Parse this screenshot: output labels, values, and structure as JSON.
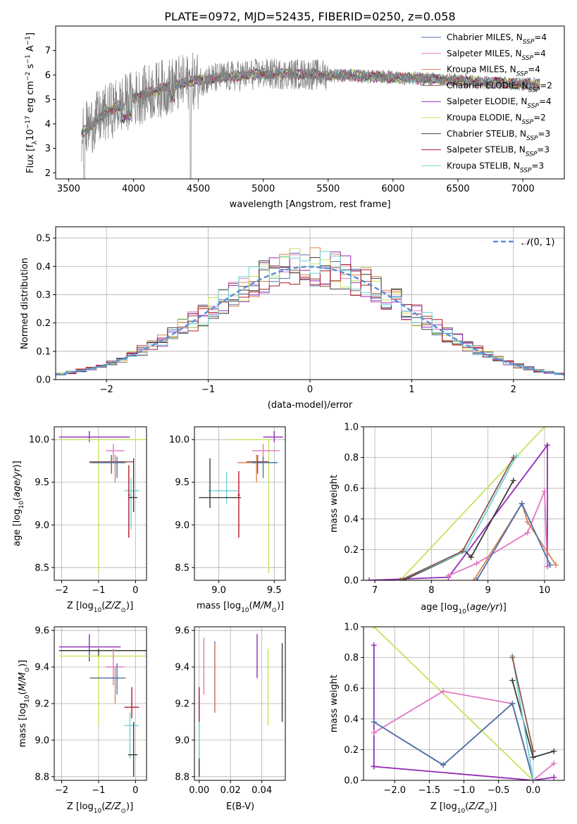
{
  "figure": {
    "title": "PLATE=0972, MJD=52435, FIBERID=0250, z=0.058"
  },
  "colors": {
    "Chabrier MILES": "#4c72b0",
    "Salpeter MILES": "#e377c2",
    "Kroupa MILES": "#dd8452",
    "Chabrier ELODIE": "#8c564b",
    "Salpeter ELODIE": "#9329b5",
    "Kroupa ELODIE": "#c6e35a",
    "Chabrier STELIB": "#3a3a3a",
    "Salpeter STELIB": "#b2182b",
    "Kroupa STELIB": "#6fd3d6",
    "data": "#808080",
    "gaussian": "#5b8fd8"
  },
  "chart_data": [
    {
      "id": "spectrum",
      "type": "line",
      "title": "PLATE=0972, MJD=52435, FIBERID=0250, z=0.058",
      "xlabel": "wavelength [Angstrom, rest frame]",
      "ylabel": "Flux [f_λ 10^-17 erg cm^-2 s^-1 A^-1]",
      "xlim": [
        3400,
        7320
      ],
      "ylim": [
        1.75,
        8.0
      ],
      "xticks": [
        3500,
        4000,
        4500,
        5000,
        5500,
        6000,
        6500,
        7000
      ],
      "yticks": [
        2,
        3,
        4,
        5,
        6,
        7
      ],
      "grid": false,
      "legend": "top-right",
      "series": [
        {
          "name": "Chabrier MILES, N_SSP=4"
        },
        {
          "name": "Salpeter MILES, N_SSP=4"
        },
        {
          "name": "Kroupa MILES, N_SSP=4"
        },
        {
          "name": "Chabrier ELODIE, N_SSP=2"
        },
        {
          "name": "Salpeter ELODIE, N_SSP=4"
        },
        {
          "name": "Kroupa ELODIE, N_SSP=2"
        },
        {
          "name": "Chabrier STELIB, N_SSP=3"
        },
        {
          "name": "Salpeter STELIB, N_SSP=3"
        },
        {
          "name": "Kroupa STELIB, N_SSP=3"
        }
      ]
    },
    {
      "id": "residuals",
      "type": "line",
      "xlabel": "(data-model)/error",
      "ylabel": "Normed distribution",
      "xlim": [
        -2.5,
        2.5
      ],
      "ylim": [
        0,
        0.54
      ],
      "xticks": [
        -2,
        -1,
        0,
        1,
        2
      ],
      "yticks": [
        0.0,
        0.1,
        0.2,
        0.3,
        0.4,
        0.5
      ],
      "grid": true,
      "legend": "top-right",
      "legend_entry": "N(0,1)"
    },
    {
      "id": "age_vs_Z",
      "type": "scatter",
      "xlabel": "Z [log10(Z/Z☉)]",
      "ylabel": "age [log10(age/yr)]",
      "xlim": [
        -2.2,
        0.3
      ],
      "ylim": [
        8.35,
        10.15
      ],
      "xticks": [
        -2,
        -1,
        0
      ],
      "yticks": [
        8.5,
        9.0,
        9.5,
        10.0
      ],
      "grid": true,
      "points": [
        {
          "s": "Salpeter ELODIE",
          "x": -1.25,
          "y": 10.03,
          "xe": [
            -2.07,
            -0.15
          ],
          "ye": [
            9.97,
            10.1
          ]
        },
        {
          "s": "Kroupa ELODIE",
          "x": -1.0,
          "y": 10.0,
          "xe": [
            -2.07,
            0.3
          ],
          "ye": [
            8.43,
            10.0
          ]
        },
        {
          "s": "Salpeter MILES",
          "x": -0.6,
          "y": 9.87,
          "xe": [
            -0.8,
            -0.3
          ],
          "ye": [
            9.73,
            9.95
          ]
        },
        {
          "s": "Kroupa MILES",
          "x": -0.55,
          "y": 9.73,
          "xe": [
            -1.25,
            -0.25
          ],
          "ye": [
            9.5,
            9.82
          ]
        },
        {
          "s": "Chabrier ELODIE",
          "x": -0.65,
          "y": 9.74,
          "xe": [
            -1.25,
            -0.05
          ],
          "ye": [
            9.6,
            9.82
          ]
        },
        {
          "s": "Chabrier MILES",
          "x": -0.5,
          "y": 9.73,
          "xe": [
            -1.2,
            -0.3
          ],
          "ye": [
            9.55,
            9.8
          ]
        },
        {
          "s": "Kroupa STELIB",
          "x": -0.12,
          "y": 9.4,
          "xe": [
            -0.3,
            0.1
          ],
          "ye": [
            8.95,
            9.55
          ]
        },
        {
          "s": "Chabrier STELIB",
          "x": -0.05,
          "y": 9.32,
          "xe": [
            -0.2,
            0.05
          ],
          "ye": [
            9.15,
            9.78
          ]
        },
        {
          "s": "Salpeter STELIB",
          "x": -0.18,
          "y": 9.35,
          "xe": [
            -0.2,
            -0.15
          ],
          "ye": [
            8.85,
            9.7
          ]
        }
      ]
    },
    {
      "id": "age_vs_mass",
      "type": "scatter",
      "xlabel": "mass [log10(M/M☉)]",
      "ylabel": "",
      "xlim": [
        8.78,
        9.6
      ],
      "ylim": [
        8.35,
        10.15
      ],
      "xticks": [
        9.0,
        9.5
      ],
      "yticks": [
        8.5,
        9.0,
        9.5,
        10.0
      ],
      "grid": true,
      "points": [
        {
          "s": "Salpeter ELODIE",
          "x": 9.5,
          "y": 10.03,
          "xe": [
            9.4,
            9.58
          ],
          "ye": [
            9.97,
            10.1
          ]
        },
        {
          "s": "Kroupa ELODIE",
          "x": 9.45,
          "y": 10.0,
          "xe": [
            9.1,
            9.47
          ],
          "ye": [
            8.43,
            10.0
          ]
        },
        {
          "s": "Salpeter MILES",
          "x": 9.4,
          "y": 9.87,
          "xe": [
            9.3,
            9.55
          ],
          "ye": [
            9.73,
            9.95
          ]
        },
        {
          "s": "Kroupa MILES",
          "x": 9.34,
          "y": 9.73,
          "xe": [
            9.17,
            9.4
          ],
          "ye": [
            9.5,
            9.82
          ]
        },
        {
          "s": "Chabrier MILES",
          "x": 9.4,
          "y": 9.73,
          "xe": [
            9.3,
            9.53
          ],
          "ye": [
            9.55,
            9.8
          ]
        },
        {
          "s": "Chabrier ELODIE",
          "x": 9.35,
          "y": 9.74,
          "xe": [
            9.25,
            9.45
          ],
          "ye": [
            9.6,
            9.82
          ]
        },
        {
          "s": "Kroupa STELIB",
          "x": 9.07,
          "y": 9.4,
          "xe": [
            8.9,
            9.17
          ],
          "ye": [
            9.25,
            9.62
          ]
        },
        {
          "s": "Chabrier STELIB",
          "x": 8.92,
          "y": 9.32,
          "xe": [
            8.82,
            9.2
          ],
          "ye": [
            9.2,
            9.78
          ]
        },
        {
          "s": "Salpeter STELIB",
          "x": 9.18,
          "y": 9.35,
          "xe": [
            9.17,
            9.19
          ],
          "ye": [
            8.85,
            9.63
          ]
        }
      ]
    },
    {
      "id": "weight_vs_age",
      "type": "line",
      "xlabel": "age [log10(age/yr)]",
      "ylabel": "mass weight",
      "xlim": [
        6.8,
        10.35
      ],
      "ylim": [
        0,
        1.0
      ],
      "xticks": [
        7,
        8,
        9,
        10
      ],
      "yticks": [
        0.0,
        0.2,
        0.4,
        0.6,
        0.8,
        1.0
      ],
      "grid": true,
      "series": [
        {
          "s": "Kroupa ELODIE",
          "x": [
            7.45,
            10.0
          ],
          "y": [
            0.0,
            1.0
          ]
        },
        {
          "s": "Salpeter ELODIE",
          "x": [
            6.9,
            8.3,
            10.05,
            10.05
          ],
          "y": [
            0.0,
            0.02,
            0.88,
            0.09
          ]
        },
        {
          "s": "Salpeter MILES",
          "x": [
            8.3,
            8.8,
            9.7,
            10.0,
            10.05
          ],
          "y": [
            0.03,
            0.11,
            0.31,
            0.58,
            0.09
          ]
        },
        {
          "s": "Kroupa MILES",
          "x": [
            8.75,
            9.6,
            9.7,
            10.2
          ],
          "y": [
            0.0,
            0.5,
            0.38,
            0.1
          ]
        },
        {
          "s": "Chabrier MILES",
          "x": [
            8.8,
            9.6,
            10.1
          ],
          "y": [
            0.0,
            0.5,
            0.1
          ]
        },
        {
          "s": "Chabrier STELIB",
          "x": [
            7.5,
            8.6,
            8.7,
            9.45
          ],
          "y": [
            0.0,
            0.19,
            0.15,
            0.65
          ]
        },
        {
          "s": "Kroupa STELIB",
          "x": [
            7.45,
            8.6,
            9.5
          ],
          "y": [
            0.0,
            0.19,
            0.81
          ]
        },
        {
          "s": "Chabrier ELODIE",
          "x": [
            7.45,
            8.55,
            9.45
          ],
          "y": [
            0.0,
            0.19,
            0.8
          ]
        }
      ]
    },
    {
      "id": "mass_vs_Z",
      "type": "scatter",
      "xlabel": "Z [log10(Z/Z☉)]",
      "ylabel": "mass [log10(M/M☉)]",
      "xlim": [
        -2.2,
        0.3
      ],
      "ylim": [
        8.78,
        9.62
      ],
      "xticks": [
        -2,
        -1,
        0
      ],
      "yticks": [
        8.8,
        9.0,
        9.2,
        9.4,
        9.6
      ],
      "grid": true,
      "points": [
        {
          "s": "Salpeter ELODIE",
          "x": -1.25,
          "y": 9.51,
          "xe": [
            -2.07,
            -0.4
          ],
          "ye": [
            9.43,
            9.58
          ]
        },
        {
          "s": "Chabrier STELIB",
          "x": -1.0,
          "y": 9.49,
          "xe": [
            -2.07,
            0.3
          ],
          "ye": [
            9.45,
            9.5
          ]
        },
        {
          "s": "Kroupa ELODIE",
          "x": -1.0,
          "y": 9.46,
          "xe": [
            -2.07,
            0.3
          ],
          "ye": [
            9.08,
            9.46
          ]
        },
        {
          "s": "Salpeter MILES",
          "x": -0.6,
          "y": 9.4,
          "xe": [
            -0.8,
            -0.3
          ],
          "ye": [
            9.3,
            9.5
          ]
        },
        {
          "s": "Kroupa MILES",
          "x": -0.55,
          "y": 9.34,
          "xe": [
            -1.25,
            -0.25
          ],
          "ye": [
            9.2,
            9.4
          ]
        },
        {
          "s": "Chabrier MILES",
          "x": -0.5,
          "y": 9.34,
          "xe": [
            -1.2,
            -0.3
          ],
          "ye": [
            9.25,
            9.42
          ]
        },
        {
          "s": "Salpeter STELIB",
          "x": -0.1,
          "y": 9.18,
          "xe": [
            -0.3,
            0.1
          ],
          "ye": [
            9.12,
            9.29
          ]
        },
        {
          "s": "Kroupa STELIB",
          "x": -0.15,
          "y": 9.08,
          "xe": [
            -0.3,
            0.1
          ],
          "ye": [
            8.9,
            9.15
          ]
        },
        {
          "s": "Chabrier STELIB",
          "x": -0.05,
          "y": 8.92,
          "xe": [
            -0.2,
            0.05
          ],
          "ye": [
            8.8,
            9.1
          ]
        }
      ]
    },
    {
      "id": "mass_vs_EBV",
      "type": "scatter",
      "xlabel": "E(B-V)",
      "ylabel": "",
      "xlim": [
        -0.003,
        0.055
      ],
      "ylim": [
        8.78,
        9.62
      ],
      "xticks": [
        0.0,
        0.02,
        0.04
      ],
      "yticks": [
        8.8,
        9.0,
        9.2,
        9.4,
        9.6
      ],
      "grid": true,
      "points": [
        {
          "s": "Chabrier STELIB",
          "x": 0.0,
          "y": 8.92,
          "ye": [
            8.8,
            9.1
          ]
        },
        {
          "s": "Kroupa STELIB",
          "x": 0.0,
          "y": 9.08,
          "ye": [
            8.9,
            9.24
          ]
        },
        {
          "s": "Salpeter STELIB",
          "x": 0.0,
          "y": 9.18,
          "ye": [
            9.1,
            9.29
          ]
        },
        {
          "s": "Salpeter MILES",
          "x": 0.003,
          "y": 9.4,
          "ye": [
            9.25,
            9.56
          ]
        },
        {
          "s": "Chabrier MILES",
          "x": 0.01,
          "y": 9.34,
          "ye": [
            9.15,
            9.54
          ]
        },
        {
          "s": "Kroupa MILES",
          "x": 0.01,
          "y": 9.34,
          "ye": [
            9.15,
            9.53
          ]
        },
        {
          "s": "Salpeter ELODIE",
          "x": 0.037,
          "y": 9.51,
          "ye": [
            9.34,
            9.58
          ]
        },
        {
          "s": "Kroupa ELODIE",
          "x": 0.044,
          "y": 9.46,
          "ye": [
            9.08,
            9.5
          ]
        },
        {
          "s": "Chabrier STELIB",
          "x": 0.053,
          "y": 9.49,
          "ye": [
            9.1,
            9.53
          ]
        }
      ]
    },
    {
      "id": "weight_vs_Z",
      "type": "line",
      "xlabel": "Z [log10(Z/Z☉)]",
      "ylabel": "mass weight",
      "xlim": [
        -2.45,
        0.45
      ],
      "ylim": [
        0,
        1.0
      ],
      "xticks": [
        -2.0,
        -1.5,
        -1.0,
        -0.5,
        0.0
      ],
      "yticks": [
        0.0,
        0.2,
        0.4,
        0.6,
        0.8,
        1.0
      ],
      "grid": true,
      "series": [
        {
          "s": "Kroupa ELODIE",
          "x": [
            -2.3,
            0.0
          ],
          "y": [
            1.0,
            0.0
          ]
        },
        {
          "s": "Salpeter ELODIE",
          "x": [
            -2.3,
            -2.3,
            -2.3,
            0.0,
            0.3
          ],
          "y": [
            0.88,
            0.09,
            0.09,
            0.0,
            0.02
          ]
        },
        {
          "s": "Salpeter MILES",
          "x": [
            -2.3,
            -1.3,
            -0.3,
            0.0,
            0.3
          ],
          "y": [
            0.31,
            0.58,
            0.5,
            0.0,
            0.11
          ]
        },
        {
          "s": "Kroupa MILES",
          "x": [
            -2.3,
            -1.3,
            -0.3,
            0.0
          ],
          "y": [
            0.38,
            0.1,
            0.5,
            0.0
          ]
        },
        {
          "s": "Chabrier MILES",
          "x": [
            -2.3,
            -1.3,
            -0.3,
            0.0
          ],
          "y": [
            0.38,
            0.1,
            0.5,
            0.0
          ]
        },
        {
          "s": "Chabrier STELIB",
          "x": [
            -0.3,
            0.0,
            0.3
          ],
          "y": [
            0.65,
            0.15,
            0.19
          ]
        },
        {
          "s": "Kroupa STELIB",
          "x": [
            -0.3,
            0.0
          ],
          "y": [
            0.81,
            0.0
          ]
        },
        {
          "s": "Chabrier ELODIE",
          "x": [
            -0.3,
            0.0
          ],
          "y": [
            0.8,
            0.19
          ]
        }
      ]
    }
  ]
}
